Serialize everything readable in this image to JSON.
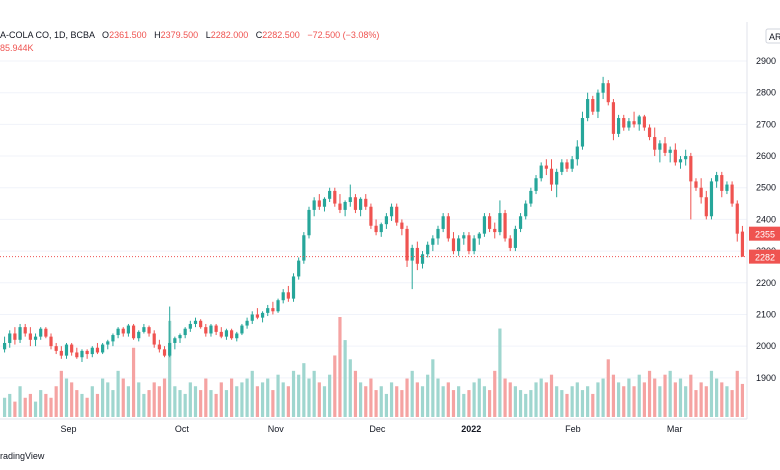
{
  "legend": {
    "symbol": "A-COLA CO, 1D, BCBA",
    "o_label": "O",
    "o": "2361.500",
    "h_label": "H",
    "h": "2379.500",
    "l_label": "L",
    "l": "2282.000",
    "c_label": "C",
    "c": "2282.500",
    "change": "−72.500 (−3.08%)",
    "volume": "85.944K"
  },
  "badge_top": "AR",
  "price_tags": {
    "prev": "2355",
    "last": "2282"
  },
  "watermark": "radingView",
  "colors": {
    "up": "#26a69a",
    "down": "#ef5350",
    "up_vol": "#9fd6cf",
    "down_vol": "#f5a3a2",
    "grid": "#f0f3fa",
    "axis_text": "#131722"
  },
  "chart_data": {
    "type": "candlestick",
    "y_axis": {
      "side": "right",
      "min": 1830,
      "max": 2960,
      "ticks": [
        1900,
        2000,
        2100,
        2200,
        2300,
        2400,
        2500,
        2600,
        2700,
        2800,
        2900
      ],
      "tick_labels": [
        "1900",
        "2000",
        "2100",
        "2200",
        "2300",
        "2400",
        "2500",
        "2600",
        "2700",
        "2800",
        "2900"
      ]
    },
    "x_axis": {
      "labels": [
        "Sep",
        "Oct",
        "Nov",
        "Dec",
        "2022",
        "Feb",
        "Mar"
      ]
    },
    "last_price": 2282.5,
    "previous_close": 2355,
    "candles": [
      [
        1990,
        2030,
        1980,
        2010,
        5
      ],
      [
        2010,
        2050,
        1995,
        2040,
        6
      ],
      [
        2040,
        2060,
        2005,
        2020,
        4
      ],
      [
        2020,
        2070,
        2010,
        2060,
        8
      ],
      [
        2060,
        2070,
        2030,
        2040,
        5
      ],
      [
        2040,
        2060,
        2000,
        2020,
        6
      ],
      [
        2020,
        2040,
        2000,
        2030,
        4
      ],
      [
        2030,
        2060,
        2020,
        2055,
        7
      ],
      [
        2055,
        2060,
        2025,
        2030,
        6
      ],
      [
        2030,
        2040,
        1990,
        2000,
        5
      ],
      [
        2000,
        2010,
        1975,
        1985,
        8
      ],
      [
        1985,
        2000,
        1960,
        1970,
        12
      ],
      [
        1970,
        2010,
        1960,
        2005,
        10
      ],
      [
        2005,
        2010,
        1970,
        1980,
        9
      ],
      [
        1980,
        1995,
        1960,
        1965,
        7
      ],
      [
        1965,
        1990,
        1950,
        1985,
        6
      ],
      [
        1985,
        1990,
        1960,
        1975,
        5
      ],
      [
        1975,
        2000,
        1965,
        1995,
        8
      ],
      [
        1995,
        2010,
        1975,
        1980,
        6
      ],
      [
        1980,
        2010,
        1975,
        2005,
        10
      ],
      [
        2005,
        2020,
        1990,
        2015,
        9
      ],
      [
        2015,
        2040,
        2000,
        2035,
        7
      ],
      [
        2035,
        2060,
        2025,
        2055,
        12
      ],
      [
        2055,
        2060,
        2030,
        2040,
        10
      ],
      [
        2040,
        2070,
        2030,
        2065,
        8
      ],
      [
        2065,
        2070,
        2020,
        2025,
        18
      ],
      [
        2025,
        2050,
        2015,
        2045,
        9
      ],
      [
        2045,
        2070,
        2040,
        2060,
        6
      ],
      [
        2060,
        2065,
        2030,
        2040,
        7
      ],
      [
        2040,
        2050,
        1995,
        2005,
        9
      ],
      [
        2005,
        2020,
        1980,
        1990,
        8
      ],
      [
        1990,
        2000,
        1965,
        1970,
        10
      ],
      [
        1970,
        2125,
        1965,
        2010,
        25
      ],
      [
        2010,
        2030,
        1990,
        2025,
        8
      ],
      [
        2025,
        2040,
        2010,
        2035,
        7
      ],
      [
        2035,
        2060,
        2025,
        2055,
        6
      ],
      [
        2055,
        2080,
        2045,
        2070,
        9
      ],
      [
        2070,
        2090,
        2060,
        2080,
        8
      ],
      [
        2080,
        2085,
        2055,
        2060,
        7
      ],
      [
        2060,
        2070,
        2030,
        2040,
        10
      ],
      [
        2040,
        2070,
        2030,
        2065,
        7
      ],
      [
        2065,
        2070,
        2035,
        2045,
        6
      ],
      [
        2045,
        2060,
        2025,
        2030,
        9
      ],
      [
        2030,
        2055,
        2020,
        2050,
        7
      ],
      [
        2050,
        2055,
        2020,
        2025,
        10
      ],
      [
        2025,
        2045,
        2015,
        2040,
        8
      ],
      [
        2040,
        2070,
        2035,
        2065,
        9
      ],
      [
        2065,
        2090,
        2055,
        2080,
        10
      ],
      [
        2080,
        2110,
        2070,
        2100,
        12
      ],
      [
        2100,
        2120,
        2085,
        2090,
        8
      ],
      [
        2090,
        2110,
        2075,
        2105,
        9
      ],
      [
        2105,
        2130,
        2095,
        2120,
        10
      ],
      [
        2120,
        2140,
        2100,
        2110,
        7
      ],
      [
        2110,
        2150,
        2105,
        2145,
        11
      ],
      [
        2145,
        2180,
        2135,
        2170,
        9
      ],
      [
        2170,
        2190,
        2140,
        2150,
        8
      ],
      [
        2150,
        2230,
        2140,
        2220,
        12
      ],
      [
        2220,
        2280,
        2210,
        2270,
        11
      ],
      [
        2270,
        2360,
        2260,
        2350,
        14
      ],
      [
        2350,
        2440,
        2340,
        2430,
        10
      ],
      [
        2430,
        2470,
        2410,
        2460,
        12
      ],
      [
        2460,
        2480,
        2430,
        2440,
        9
      ],
      [
        2440,
        2470,
        2425,
        2465,
        8
      ],
      [
        2465,
        2500,
        2455,
        2490,
        11
      ],
      [
        2490,
        2500,
        2440,
        2450,
        16
      ],
      [
        2450,
        2480,
        2420,
        2430,
        26
      ],
      [
        2430,
        2460,
        2410,
        2455,
        20
      ],
      [
        2455,
        2510,
        2440,
        2470,
        15
      ],
      [
        2470,
        2480,
        2420,
        2430,
        12
      ],
      [
        2430,
        2470,
        2410,
        2465,
        9
      ],
      [
        2465,
        2480,
        2430,
        2440,
        8
      ],
      [
        2440,
        2450,
        2370,
        2380,
        10
      ],
      [
        2380,
        2400,
        2350,
        2360,
        7
      ],
      [
        2360,
        2390,
        2345,
        2385,
        8
      ],
      [
        2385,
        2420,
        2370,
        2410,
        6
      ],
      [
        2410,
        2450,
        2395,
        2440,
        9
      ],
      [
        2440,
        2450,
        2380,
        2390,
        8
      ],
      [
        2390,
        2400,
        2350,
        2370,
        7
      ],
      [
        2370,
        2380,
        2250,
        2270,
        10
      ],
      [
        2270,
        2320,
        2180,
        2310,
        12
      ],
      [
        2310,
        2330,
        2240,
        2260,
        9
      ],
      [
        2260,
        2300,
        2245,
        2290,
        8
      ],
      [
        2290,
        2330,
        2280,
        2320,
        11
      ],
      [
        2320,
        2350,
        2300,
        2340,
        15
      ],
      [
        2340,
        2380,
        2320,
        2370,
        10
      ],
      [
        2370,
        2420,
        2360,
        2410,
        8
      ],
      [
        2410,
        2420,
        2330,
        2340,
        9
      ],
      [
        2340,
        2360,
        2290,
        2300,
        7
      ],
      [
        2300,
        2350,
        2285,
        2340,
        8
      ],
      [
        2340,
        2360,
        2320,
        2350,
        6
      ],
      [
        2350,
        2360,
        2290,
        2300,
        7
      ],
      [
        2300,
        2350,
        2290,
        2340,
        9
      ],
      [
        2340,
        2360,
        2320,
        2355,
        10
      ],
      [
        2355,
        2420,
        2345,
        2410,
        8
      ],
      [
        2410,
        2420,
        2360,
        2370,
        7
      ],
      [
        2370,
        2390,
        2340,
        2360,
        12
      ],
      [
        2360,
        2460,
        2350,
        2420,
        23
      ],
      [
        2420,
        2430,
        2330,
        2340,
        10
      ],
      [
        2340,
        2350,
        2300,
        2310,
        9
      ],
      [
        2310,
        2380,
        2300,
        2370,
        8
      ],
      [
        2370,
        2420,
        2360,
        2410,
        7
      ],
      [
        2410,
        2460,
        2400,
        2450,
        6
      ],
      [
        2450,
        2500,
        2440,
        2490,
        7
      ],
      [
        2490,
        2540,
        2480,
        2530,
        9
      ],
      [
        2530,
        2580,
        2520,
        2570,
        10
      ],
      [
        2570,
        2590,
        2540,
        2560,
        9
      ],
      [
        2560,
        2590,
        2490,
        2510,
        11
      ],
      [
        2510,
        2560,
        2470,
        2550,
        8
      ],
      [
        2550,
        2590,
        2540,
        2580,
        7
      ],
      [
        2580,
        2590,
        2550,
        2560,
        6
      ],
      [
        2560,
        2600,
        2550,
        2590,
        8
      ],
      [
        2590,
        2650,
        2570,
        2630,
        9
      ],
      [
        2630,
        2740,
        2620,
        2720,
        7
      ],
      [
        2720,
        2800,
        2710,
        2780,
        8
      ],
      [
        2780,
        2790,
        2730,
        2740,
        6
      ],
      [
        2740,
        2810,
        2720,
        2800,
        9
      ],
      [
        2800,
        2850,
        2780,
        2830,
        10
      ],
      [
        2830,
        2840,
        2760,
        2770,
        15
      ],
      [
        2770,
        2780,
        2650,
        2670,
        11
      ],
      [
        2670,
        2730,
        2660,
        2720,
        9
      ],
      [
        2720,
        2730,
        2680,
        2690,
        8
      ],
      [
        2690,
        2720,
        2680,
        2710,
        10
      ],
      [
        2710,
        2740,
        2690,
        2700,
        8
      ],
      [
        2700,
        2730,
        2680,
        2725,
        11
      ],
      [
        2725,
        2730,
        2680,
        2690,
        9
      ],
      [
        2690,
        2700,
        2650,
        2660,
        12
      ],
      [
        2660,
        2690,
        2600,
        2620,
        10
      ],
      [
        2620,
        2650,
        2580,
        2640,
        8
      ],
      [
        2640,
        2660,
        2600,
        2610,
        11
      ],
      [
        2610,
        2630,
        2580,
        2620,
        12
      ],
      [
        2620,
        2640,
        2570,
        2580,
        9
      ],
      [
        2580,
        2600,
        2560,
        2590,
        10
      ],
      [
        2590,
        2620,
        2570,
        2600,
        8
      ],
      [
        2600,
        2610,
        2400,
        2520,
        11
      ],
      [
        2520,
        2530,
        2490,
        2500,
        7
      ],
      [
        2500,
        2530,
        2450,
        2470,
        9
      ],
      [
        2470,
        2490,
        2400,
        2410,
        8
      ],
      [
        2410,
        2530,
        2400,
        2520,
        12
      ],
      [
        2520,
        2550,
        2500,
        2540,
        10
      ],
      [
        2540,
        2550,
        2470,
        2490,
        9
      ],
      [
        2490,
        2520,
        2480,
        2510,
        8
      ],
      [
        2510,
        2520,
        2440,
        2450,
        7
      ],
      [
        2450,
        2460,
        2330,
        2355,
        12
      ],
      [
        2361.5,
        2379.5,
        2282,
        2282.5,
        8.6
      ]
    ]
  }
}
